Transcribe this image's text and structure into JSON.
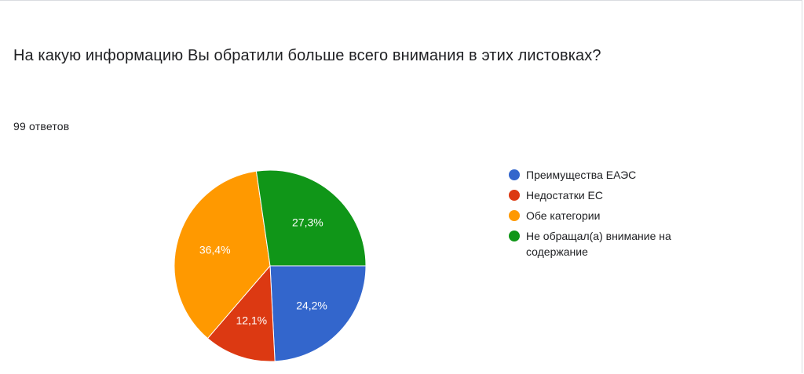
{
  "question": {
    "title": "На какую информацию Вы обратили больше всего внимания в этих листовках?",
    "responses": "99 ответов"
  },
  "chart_data": {
    "type": "pie",
    "slices": [
      {
        "label": "Преимущества ЕАЭС",
        "value": 24.2,
        "display": "24,2%",
        "color": "#3366cc"
      },
      {
        "label": "Недостатки ЕС",
        "value": 12.1,
        "display": "12,1%",
        "color": "#dc3912"
      },
      {
        "label": "Обе категории",
        "value": 36.4,
        "display": "36,4%",
        "color": "#ff9900"
      },
      {
        "label": "Не обращал(а) внимание на содержание",
        "value": 27.3,
        "display": "27,3%",
        "color": "#109618"
      }
    ],
    "legend_position": "right",
    "start": "3 o'clock, clockwise"
  }
}
